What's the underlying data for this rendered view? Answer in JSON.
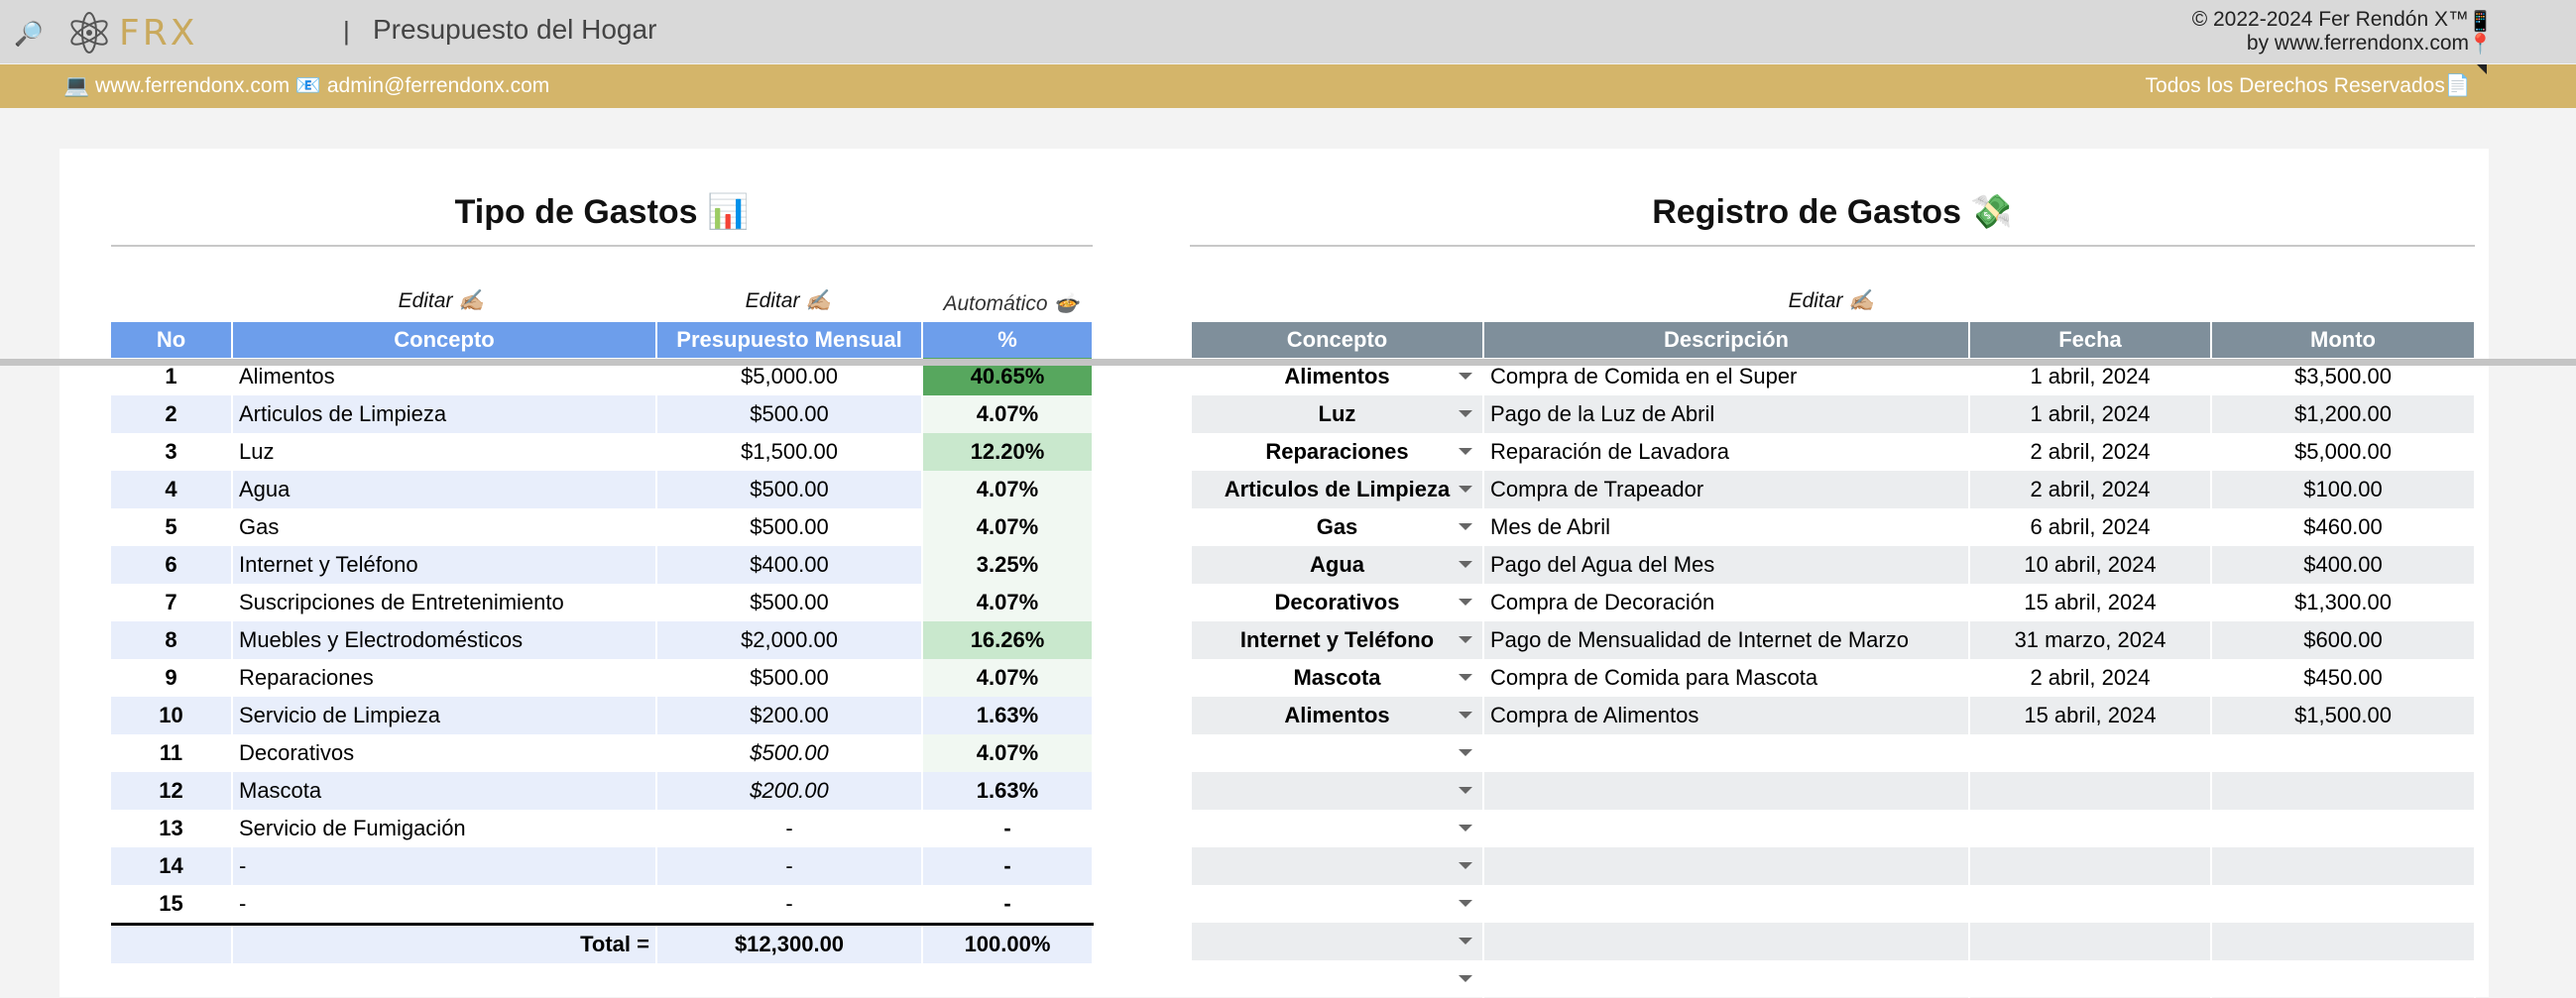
{
  "header": {
    "title": "Presupuesto del Hogar",
    "separator": "|",
    "logo_text": "FRX",
    "copyright": "© 2022-2024 Fer Rendón X™",
    "by": "by www.ferrendonx.com",
    "phone_icon": "📱",
    "pin_icon": "📍",
    "search_icon": "🔎"
  },
  "contact": {
    "text": "💻 www.ferrendonx.com 📧 admin@ferrendonx.com",
    "rights": "Todos los Derechos Reservados📄"
  },
  "colors": {
    "gold": "#d4b56a",
    "left_header": "#6d9eeb",
    "right_header": "#7f8f9b",
    "pct_high": "#57a75e",
    "pct_mid": "#c9e8cd",
    "pct_low": "#f1f8f2"
  },
  "tipo": {
    "title": "Tipo de Gastos 📊",
    "edit1": "Editar ✍🏼",
    "edit2": "Editar ✍🏼",
    "auto": "Automático 🍲",
    "headers": [
      "No",
      "Concepto",
      "Presupuesto Mensual",
      "%"
    ],
    "rows": [
      {
        "no": "1",
        "concepto": "Alimentos",
        "presupuesto": "$5,000.00",
        "pct": "40.65%",
        "level": "high",
        "ital": false
      },
      {
        "no": "2",
        "concepto": "Articulos de Limpieza",
        "presupuesto": "$500.00",
        "pct": "4.07%",
        "level": "low",
        "ital": false
      },
      {
        "no": "3",
        "concepto": "Luz",
        "presupuesto": "$1,500.00",
        "pct": "12.20%",
        "level": "mid",
        "ital": false
      },
      {
        "no": "4",
        "concepto": "Agua",
        "presupuesto": "$500.00",
        "pct": "4.07%",
        "level": "low",
        "ital": false
      },
      {
        "no": "5",
        "concepto": "Gas",
        "presupuesto": "$500.00",
        "pct": "4.07%",
        "level": "low",
        "ital": false
      },
      {
        "no": "6",
        "concepto": "Internet y Teléfono",
        "presupuesto": "$400.00",
        "pct": "3.25%",
        "level": "low",
        "ital": false
      },
      {
        "no": "7",
        "concepto": "Suscripciones de Entretenimiento",
        "presupuesto": "$500.00",
        "pct": "4.07%",
        "level": "low",
        "ital": false
      },
      {
        "no": "8",
        "concepto": "Muebles y Electrodomésticos",
        "presupuesto": "$2,000.00",
        "pct": "16.26%",
        "level": "mid",
        "ital": false
      },
      {
        "no": "9",
        "concepto": "Reparaciones",
        "presupuesto": "$500.00",
        "pct": "4.07%",
        "level": "low",
        "ital": false
      },
      {
        "no": "10",
        "concepto": "Servicio de Limpieza",
        "presupuesto": "$200.00",
        "pct": "1.63%",
        "level": "none",
        "ital": false
      },
      {
        "no": "11",
        "concepto": "Decorativos",
        "presupuesto": "$500.00",
        "pct": "4.07%",
        "level": "low",
        "ital": true
      },
      {
        "no": "12",
        "concepto": "Mascota",
        "presupuesto": "$200.00",
        "pct": "1.63%",
        "level": "none",
        "ital": true
      },
      {
        "no": "13",
        "concepto": "Servicio de Fumigación",
        "presupuesto": "-",
        "pct": "-",
        "level": "none",
        "ital": false
      },
      {
        "no": "14",
        "concepto": "-",
        "presupuesto": "-",
        "pct": "-",
        "level": "none",
        "ital": false
      },
      {
        "no": "15",
        "concepto": "-",
        "presupuesto": "-",
        "pct": "-",
        "level": "none",
        "ital": false
      }
    ],
    "total_label": "Total =",
    "total_value": "$12,300.00",
    "total_pct": "100.00%"
  },
  "registro": {
    "title": "Registro de Gastos 💸",
    "edit": "Editar ✍🏼",
    "headers": [
      "Concepto",
      "Descripción",
      "Fecha",
      "Monto"
    ],
    "rows": [
      {
        "concepto": "Alimentos",
        "descripcion": "Compra de Comida en el Super",
        "fecha": "1 abril, 2024",
        "monto": "$3,500.00"
      },
      {
        "concepto": "Luz",
        "descripcion": "Pago de la Luz de Abril",
        "fecha": "1 abril, 2024",
        "monto": "$1,200.00"
      },
      {
        "concepto": "Reparaciones",
        "descripcion": "Reparación de Lavadora",
        "fecha": "2 abril, 2024",
        "monto": "$5,000.00"
      },
      {
        "concepto": "Articulos de Limpieza",
        "descripcion": "Compra de Trapeador",
        "fecha": "2 abril, 2024",
        "monto": "$100.00"
      },
      {
        "concepto": "Gas",
        "descripcion": "Mes de Abril",
        "fecha": "6 abril, 2024",
        "monto": "$460.00"
      },
      {
        "concepto": "Agua",
        "descripcion": "Pago del Agua del Mes",
        "fecha": "10 abril, 2024",
        "monto": "$400.00"
      },
      {
        "concepto": "Decorativos",
        "descripcion": "Compra de Decoración",
        "fecha": "15 abril, 2024",
        "monto": "$1,300.00"
      },
      {
        "concepto": "Internet y Teléfono",
        "descripcion": "Pago de Mensualidad de Internet de Marzo",
        "fecha": "31 marzo, 2024",
        "monto": "$600.00"
      },
      {
        "concepto": "Mascota",
        "descripcion": "Compra de Comida para Mascota",
        "fecha": "2 abril, 2024",
        "monto": "$450.00"
      },
      {
        "concepto": "Alimentos",
        "descripcion": "Compra de Alimentos",
        "fecha": "15 abril, 2024",
        "monto": "$1,500.00"
      },
      {
        "concepto": "",
        "descripcion": "",
        "fecha": "",
        "monto": ""
      },
      {
        "concepto": "",
        "descripcion": "",
        "fecha": "",
        "monto": ""
      },
      {
        "concepto": "",
        "descripcion": "",
        "fecha": "",
        "monto": ""
      },
      {
        "concepto": "",
        "descripcion": "",
        "fecha": "",
        "monto": ""
      },
      {
        "concepto": "",
        "descripcion": "",
        "fecha": "",
        "monto": ""
      },
      {
        "concepto": "",
        "descripcion": "",
        "fecha": "",
        "monto": ""
      },
      {
        "concepto": "",
        "descripcion": "",
        "fecha": "",
        "monto": ""
      }
    ]
  }
}
